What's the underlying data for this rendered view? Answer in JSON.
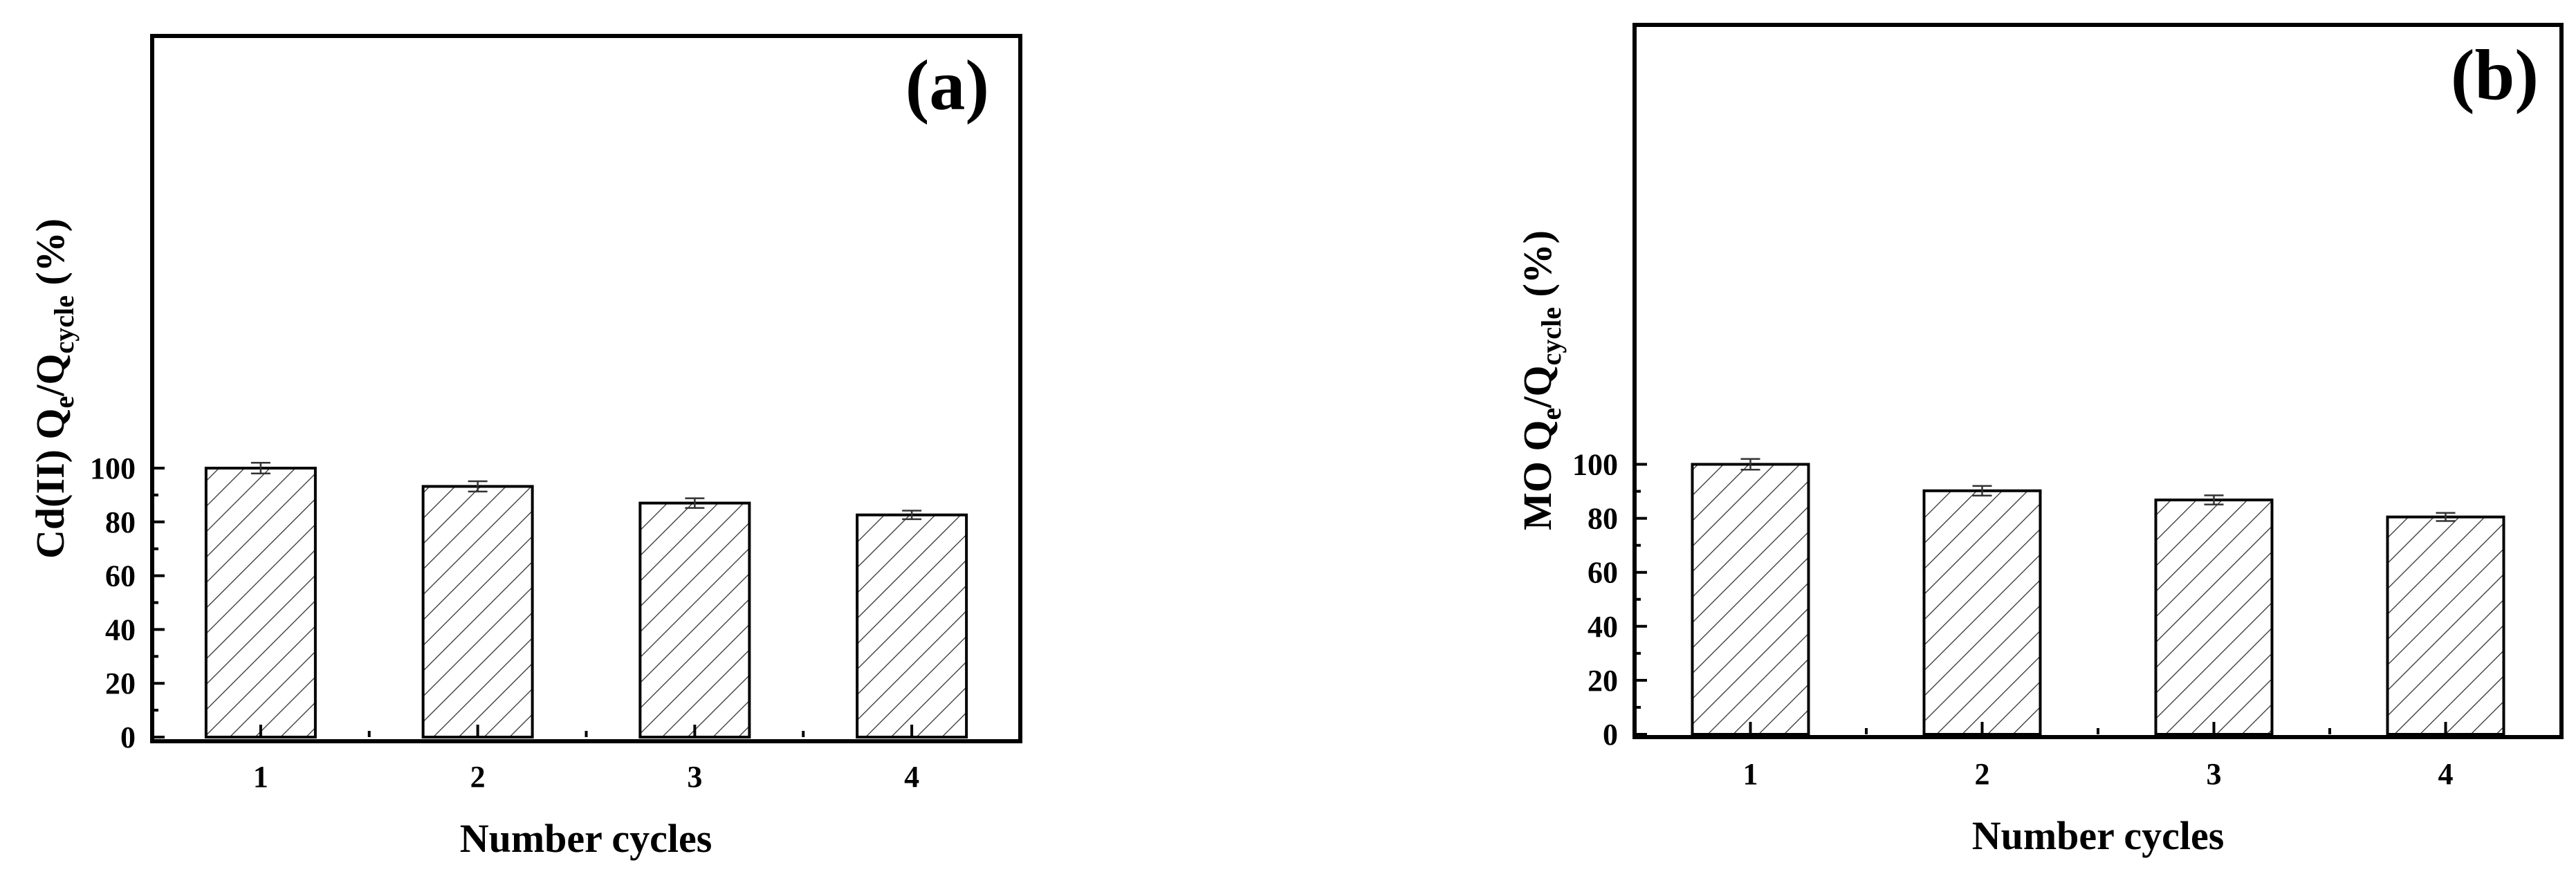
{
  "chart_data": [
    {
      "type": "bar",
      "panel_label": "(a)",
      "categories": [
        "1",
        "2",
        "3",
        "4"
      ],
      "values": [
        100.0,
        93.2,
        87.0,
        82.6
      ],
      "errors": [
        2.0,
        1.9,
        1.8,
        1.6
      ],
      "xlabel": "Number cycles",
      "ylabel": {
        "prefix": "Cd(II) Q",
        "sub1": "e",
        "mid": "/Q",
        "sub2": "cycle",
        "suffix": " (%)"
      },
      "ylim": [
        0,
        110
      ],
      "yticks": [
        0,
        20,
        40,
        60,
        80,
        100
      ],
      "grid": false,
      "legend": "none",
      "bar_fill": "hatched"
    },
    {
      "type": "bar",
      "panel_label": "(b)",
      "categories": [
        "1",
        "2",
        "3",
        "4"
      ],
      "values": [
        100.0,
        90.2,
        86.8,
        80.5
      ],
      "errors": [
        2.0,
        1.8,
        1.7,
        1.5
      ],
      "xlabel": "Number cycles",
      "ylabel": {
        "prefix": "MO Q",
        "sub1": "e",
        "mid": "/Q",
        "sub2": "cycle",
        "suffix": " (%)"
      },
      "ylim": [
        0,
        110
      ],
      "yticks": [
        0,
        20,
        40,
        60,
        80,
        100
      ],
      "grid": false,
      "legend": "none",
      "bar_fill": "hatched"
    }
  ]
}
